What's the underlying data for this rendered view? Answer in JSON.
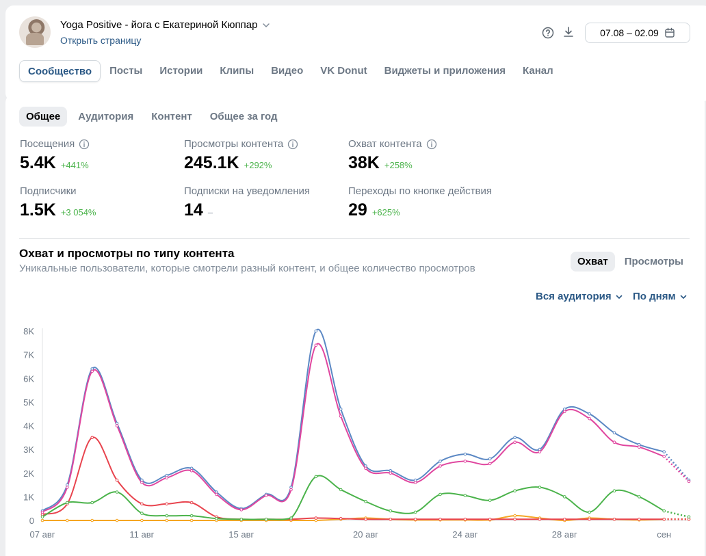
{
  "header": {
    "group_title": "Yoga Positive - йога с Екатериной Кюппар",
    "open_link": "Открыть страницу",
    "date_range": "07.08 – 02.09",
    "tabs": [
      "Сообщество",
      "Посты",
      "Истории",
      "Клипы",
      "Видео",
      "VK Donut",
      "Виджеты и приложения",
      "Канал"
    ],
    "active_tab": "Сообщество"
  },
  "subtabs": [
    "Общее",
    "Аудитория",
    "Контент",
    "Общее за год"
  ],
  "active_subtab": "Общее",
  "metrics": [
    {
      "label": "Посещения",
      "value": "5.4K",
      "delta": "+441%",
      "info": true
    },
    {
      "label": "Просмотры контента",
      "value": "245.1K",
      "delta": "+292%",
      "info": true
    },
    {
      "label": "Охват контента",
      "value": "38K",
      "delta": "+258%",
      "info": true
    },
    {
      "label": "Подписчики",
      "value": "1.5K",
      "delta": "+3 054%",
      "info": false
    },
    {
      "label": "Подписки на уведомления",
      "value": "14",
      "delta": "–",
      "info": false
    },
    {
      "label": "Переходы по кнопке действия",
      "value": "29",
      "delta": "+625%",
      "info": false
    }
  ],
  "chart_section": {
    "title": "Охват и просмотры по типу контента",
    "subtitle": "Уникальные пользователи, которые смотрели разный контент, и общее количество просмотров",
    "toggle": [
      "Охват",
      "Просмотры"
    ],
    "active_toggle": "Охват",
    "audience_dropdown": "Вся аудитория",
    "period_dropdown": "По дням"
  },
  "colors": {
    "blue": "#5b88c4",
    "pink": "#e0469f",
    "red": "#e8444e",
    "green": "#4bb34b",
    "orange": "#f5a623",
    "link": "#2a5885",
    "delta": "#4bb34b"
  },
  "chart_data": {
    "type": "line",
    "title": "",
    "ylim": [
      0,
      8000
    ],
    "y_ticks": [
      {
        "value": 0,
        "label": "0"
      },
      {
        "value": 1000,
        "label": "1K"
      },
      {
        "value": 2000,
        "label": "2K"
      },
      {
        "value": 3000,
        "label": "3K"
      },
      {
        "value": 4000,
        "label": "4K"
      },
      {
        "value": 5000,
        "label": "5K"
      },
      {
        "value": 6000,
        "label": "6K"
      },
      {
        "value": 7000,
        "label": "7K"
      },
      {
        "value": 8000,
        "label": "8K"
      }
    ],
    "x": [
      "07 авг",
      "08 авг",
      "09 авг",
      "10 авг",
      "11 авг",
      "12 авг",
      "13 авг",
      "14 авг",
      "15 авг",
      "16 авг",
      "17 авг",
      "18 авг",
      "19 авг",
      "20 авг",
      "21 авг",
      "22 авг",
      "23 авг",
      "24 авг",
      "25 авг",
      "26 авг",
      "27 авг",
      "28 авг",
      "29 авг",
      "30 авг",
      "31 авг",
      "01 сен",
      "02 сен"
    ],
    "x_tick_labels": [
      {
        "index": 0,
        "label": "07 авг"
      },
      {
        "index": 4,
        "label": "11 авг"
      },
      {
        "index": 8,
        "label": "15 авг"
      },
      {
        "index": 13,
        "label": "20 авг"
      },
      {
        "index": 17,
        "label": "24 авг"
      },
      {
        "index": 21,
        "label": "28 авг"
      },
      {
        "index": 25,
        "label": "сен"
      }
    ],
    "series": [
      {
        "color": "blue",
        "values": [
          400,
          1500,
          6400,
          4100,
          1700,
          1900,
          2200,
          1200,
          500,
          1100,
          1400,
          8000,
          4700,
          2300,
          2100,
          1700,
          2500,
          2800,
          2600,
          3500,
          3000,
          4700,
          4500,
          3700,
          3200,
          2900,
          1700
        ]
      },
      {
        "color": "pink",
        "values": [
          350,
          1400,
          6300,
          4000,
          1600,
          1800,
          2100,
          1100,
          450,
          1050,
          1300,
          7400,
          4400,
          2200,
          2000,
          1600,
          2300,
          2500,
          2400,
          3300,
          2900,
          4600,
          4300,
          3300,
          3100,
          2700,
          1650
        ]
      },
      {
        "color": "red",
        "values": [
          250,
          700,
          3500,
          1700,
          700,
          700,
          750,
          150,
          50,
          50,
          50,
          100,
          80,
          50,
          50,
          50,
          50,
          50,
          50,
          50,
          50,
          50,
          50,
          50,
          50,
          50,
          50
        ]
      },
      {
        "color": "green",
        "values": [
          150,
          750,
          750,
          1200,
          300,
          200,
          200,
          80,
          50,
          50,
          100,
          1850,
          1300,
          800,
          400,
          350,
          1100,
          1050,
          850,
          1250,
          1400,
          1000,
          350,
          1250,
          1000,
          400,
          150
        ]
      },
      {
        "color": "orange",
        "values": [
          0,
          0,
          0,
          0,
          0,
          0,
          0,
          0,
          0,
          0,
          0,
          0,
          50,
          100,
          50,
          20,
          20,
          20,
          20,
          200,
          100,
          0,
          100,
          50,
          20,
          50,
          50
        ]
      }
    ]
  }
}
